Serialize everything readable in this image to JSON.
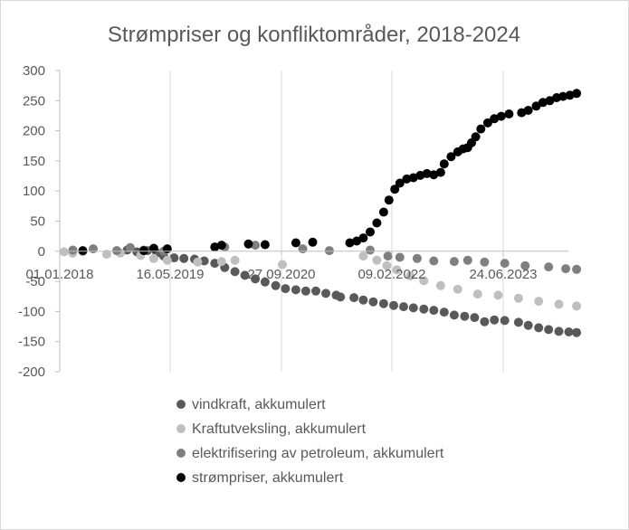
{
  "chart_data": {
    "type": "scatter",
    "title": "Strømpriser og konfliktområder, 2018-2024",
    "x_tick_labels": [
      "01.01.2018",
      "16.05.2019",
      "27.09.2020",
      "09.02.2022",
      "24.06.2023"
    ],
    "x_tick_dates": [
      "2018-01-01",
      "2019-05-16",
      "2020-09-27",
      "2022-02-09",
      "2023-06-24"
    ],
    "xlim": [
      "2018-01-01",
      "2024-10-31"
    ],
    "ylim": [
      -200,
      300
    ],
    "y_ticks": [
      300,
      250,
      200,
      150,
      100,
      50,
      0,
      -50,
      -100,
      -150,
      -200
    ],
    "grid": "vertical",
    "legend_position": "bottom",
    "series": [
      {
        "name": "vindkraft, akkumulert",
        "color": "#595959",
        "points": [
          [
            "2018-11-01",
            2
          ],
          [
            "2018-12-15",
            -1
          ],
          [
            "2019-02-01",
            1
          ],
          [
            "2019-03-15",
            -3
          ],
          [
            "2019-04-15",
            -8
          ],
          [
            "2019-06-01",
            -11
          ],
          [
            "2019-07-15",
            -12
          ],
          [
            "2019-09-01",
            -13
          ],
          [
            "2019-10-15",
            -16
          ],
          [
            "2019-12-01",
            -20
          ],
          [
            "2020-01-15",
            -27
          ],
          [
            "2020-03-01",
            -34
          ],
          [
            "2020-04-15",
            -40
          ],
          [
            "2020-06-01",
            -46
          ],
          [
            "2020-07-15",
            -51
          ],
          [
            "2020-09-01",
            -57
          ],
          [
            "2020-10-15",
            -62
          ],
          [
            "2020-12-01",
            -64
          ],
          [
            "2021-01-15",
            -66
          ],
          [
            "2021-03-01",
            -66
          ],
          [
            "2021-04-15",
            -70
          ],
          [
            "2021-06-01",
            -73
          ],
          [
            "2021-06-20",
            -76
          ],
          [
            "2021-08-20",
            -77
          ],
          [
            "2021-10-01",
            -81
          ],
          [
            "2021-11-15",
            -84
          ],
          [
            "2022-01-01",
            -87
          ],
          [
            "2022-02-15",
            -90
          ],
          [
            "2022-04-01",
            -92
          ],
          [
            "2022-05-15",
            -94
          ],
          [
            "2022-07-01",
            -96
          ],
          [
            "2022-08-15",
            -98
          ],
          [
            "2022-10-01",
            -101
          ],
          [
            "2022-11-15",
            -106
          ],
          [
            "2023-01-01",
            -108
          ],
          [
            "2023-02-15",
            -110
          ],
          [
            "2023-04-01",
            -117
          ],
          [
            "2023-05-15",
            -114
          ],
          [
            "2023-07-01",
            -115
          ],
          [
            "2023-09-01",
            -118
          ],
          [
            "2023-10-15",
            -123
          ],
          [
            "2023-12-01",
            -127
          ],
          [
            "2024-01-15",
            -130
          ],
          [
            "2024-03-01",
            -133
          ],
          [
            "2024-04-15",
            -134
          ],
          [
            "2024-05-20",
            -135
          ]
        ]
      },
      {
        "name": "Kraftutveksling, akkumulert",
        "color": "#bfbfbf",
        "points": [
          [
            "2018-01-20",
            -1
          ],
          [
            "2018-03-01",
            -3
          ],
          [
            "2018-04-15",
            -1
          ],
          [
            "2018-08-01",
            -5
          ],
          [
            "2018-10-01",
            -3
          ],
          [
            "2019-01-01",
            -7
          ],
          [
            "2019-03-01",
            -12
          ],
          [
            "2019-05-01",
            -15
          ],
          [
            "2019-09-15",
            -18
          ],
          [
            "2020-01-01",
            -17
          ],
          [
            "2020-03-01",
            -15
          ],
          [
            "2020-10-01",
            -22
          ],
          [
            "2021-10-01",
            -8
          ],
          [
            "2021-12-01",
            -15
          ],
          [
            "2022-01-15",
            -24
          ],
          [
            "2022-03-01",
            -31
          ],
          [
            "2022-05-01",
            -41
          ],
          [
            "2022-07-01",
            -49
          ],
          [
            "2022-09-15",
            -57
          ],
          [
            "2022-12-01",
            -63
          ],
          [
            "2023-03-01",
            -71
          ],
          [
            "2023-06-01",
            -73
          ],
          [
            "2023-09-01",
            -78
          ],
          [
            "2023-12-01",
            -83
          ],
          [
            "2024-03-01",
            -88
          ],
          [
            "2024-05-20",
            -91
          ]
        ]
      },
      {
        "name": "elektrifisering av petroleum, akkumulert",
        "color": "#7f7f7f",
        "points": [
          [
            "2018-03-01",
            2
          ],
          [
            "2018-06-01",
            4
          ],
          [
            "2018-09-15",
            1
          ],
          [
            "2018-11-15",
            6
          ],
          [
            "2019-01-15",
            2
          ],
          [
            "2019-04-15",
            0
          ],
          [
            "2020-01-15",
            7
          ],
          [
            "2020-06-01",
            10
          ],
          [
            "2021-01-01",
            4
          ],
          [
            "2021-05-01",
            1
          ],
          [
            "2021-11-01",
            2
          ],
          [
            "2022-01-20",
            -8
          ],
          [
            "2022-03-15",
            -10
          ],
          [
            "2022-06-01",
            -12
          ],
          [
            "2022-08-15",
            -16
          ],
          [
            "2022-11-15",
            -17
          ],
          [
            "2023-01-15",
            -15
          ],
          [
            "2023-04-01",
            -18
          ],
          [
            "2023-07-01",
            -20
          ],
          [
            "2023-10-01",
            -24
          ],
          [
            "2024-01-15",
            -26
          ],
          [
            "2024-04-01",
            -29
          ],
          [
            "2024-05-20",
            -30
          ]
        ]
      },
      {
        "name": "strømpriser, akkumulert",
        "color": "#000000",
        "points": [
          [
            "2018-04-15",
            1
          ],
          [
            "2019-01-15",
            1
          ],
          [
            "2019-03-01",
            5
          ],
          [
            "2019-05-01",
            4
          ],
          [
            "2019-12-01",
            7
          ],
          [
            "2020-01-01",
            10
          ],
          [
            "2020-05-01",
            12
          ],
          [
            "2020-07-15",
            11
          ],
          [
            "2020-12-01",
            14
          ],
          [
            "2021-02-15",
            15
          ],
          [
            "2021-08-01",
            14
          ],
          [
            "2021-09-01",
            17
          ],
          [
            "2021-10-01",
            22
          ],
          [
            "2021-11-01",
            32
          ],
          [
            "2021-12-01",
            47
          ],
          [
            "2022-01-01",
            65
          ],
          [
            "2022-01-25",
            85
          ],
          [
            "2022-02-20",
            103
          ],
          [
            "2022-03-15",
            113
          ],
          [
            "2022-04-15",
            120
          ],
          [
            "2022-05-15",
            122
          ],
          [
            "2022-06-15",
            126
          ],
          [
            "2022-07-15",
            129
          ],
          [
            "2022-08-15",
            127
          ],
          [
            "2022-09-15",
            131
          ],
          [
            "2022-10-01",
            145
          ],
          [
            "2022-11-01",
            157
          ],
          [
            "2022-12-01",
            165
          ],
          [
            "2022-12-25",
            170
          ],
          [
            "2023-01-15",
            172
          ],
          [
            "2023-02-01",
            180
          ],
          [
            "2023-02-20",
            190
          ],
          [
            "2023-03-15",
            203
          ],
          [
            "2023-04-15",
            213
          ],
          [
            "2023-05-15",
            220
          ],
          [
            "2023-06-15",
            224
          ],
          [
            "2023-07-20",
            228
          ],
          [
            "2023-09-15",
            230
          ],
          [
            "2023-10-15",
            234
          ],
          [
            "2023-11-20",
            241
          ],
          [
            "2023-12-20",
            247
          ],
          [
            "2024-01-20",
            250
          ],
          [
            "2024-02-20",
            255
          ],
          [
            "2024-03-20",
            257
          ],
          [
            "2024-04-20",
            259
          ],
          [
            "2024-05-20",
            262
          ]
        ]
      }
    ]
  }
}
